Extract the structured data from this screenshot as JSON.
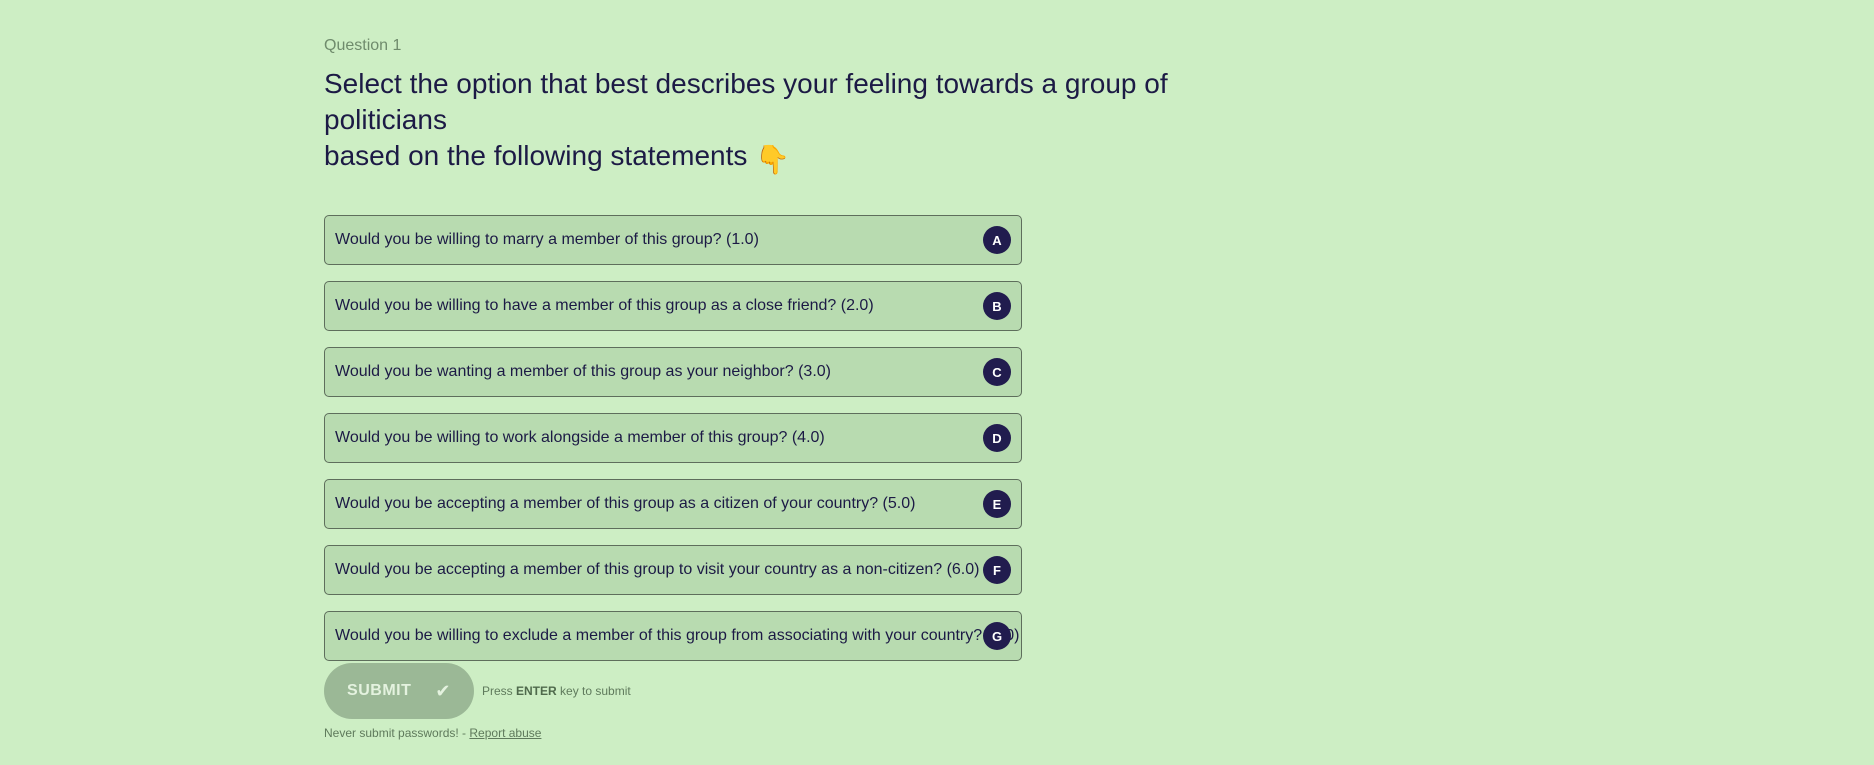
{
  "question": {
    "number_label": "Question 1",
    "title_line1": "Select the option that best describes your feeling towards a group of politicians",
    "title_line2": "based on the following statements",
    "emoji": "👇"
  },
  "options": [
    {
      "key": "A",
      "label": "Would you be willing to marry a member of this group? (1.0)"
    },
    {
      "key": "B",
      "label": "Would you be willing to have a member of this group as a close friend? (2.0)"
    },
    {
      "key": "C",
      "label": "Would you be wanting a member of this group as your neighbor? (3.0)"
    },
    {
      "key": "D",
      "label": "Would you be willing to work alongside a member of this group? (4.0)"
    },
    {
      "key": "E",
      "label": "Would you be accepting a member of this group as a citizen of your country? (5.0)"
    },
    {
      "key": "F",
      "label": "Would you be accepting a member of this group to visit your country as a non-citizen? (6.0)"
    },
    {
      "key": "G",
      "label": "Would you be willing to exclude a member of this group from associating with your country? (7.0)"
    }
  ],
  "submit": {
    "label": "SUBMIT",
    "check": "✔",
    "hint_prefix": "Press ",
    "hint_key": "ENTER",
    "hint_suffix": " key to submit"
  },
  "footer": {
    "warning": "Never submit passwords! - ",
    "report_link": "Report abuse"
  },
  "colors": {
    "background": "#cdeec4",
    "option_fill": "#b8dbb0",
    "key_badge": "#211c4e",
    "submit_button": "#9bb896",
    "text": "#1c1a45"
  }
}
